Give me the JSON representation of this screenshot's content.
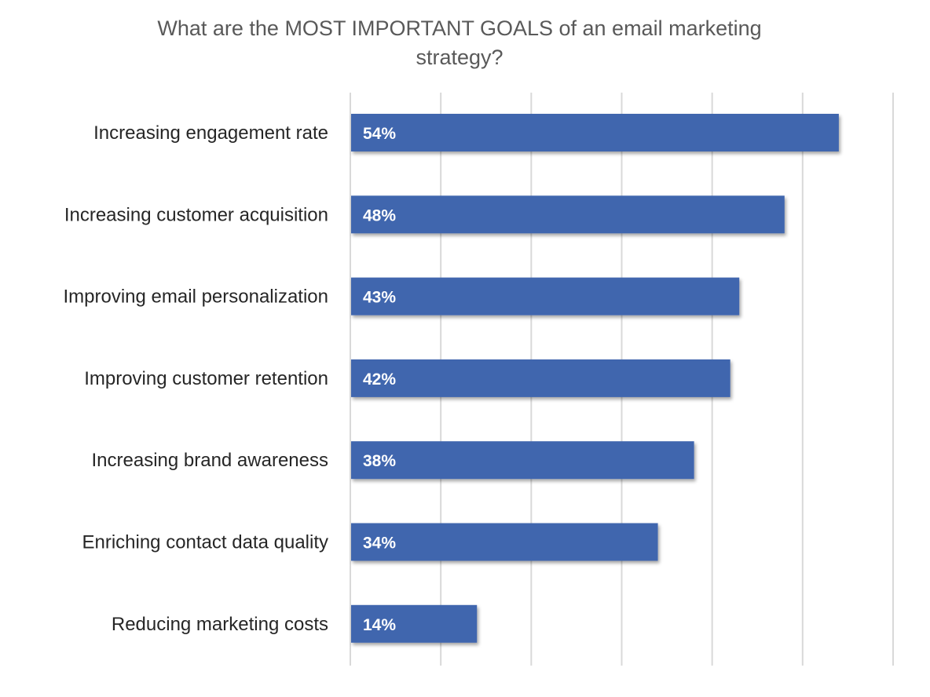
{
  "chart_data": {
    "type": "bar",
    "orientation": "horizontal",
    "title": "What are the MOST IMPORTANT GOALS of an email marketing strategy?",
    "categories": [
      "Increasing engagement rate",
      "Increasing customer acquisition",
      "Improving email personalization",
      "Improving customer retention",
      "Increasing brand awareness",
      "Enriching contact data quality",
      "Reducing marketing costs"
    ],
    "values": [
      54,
      48,
      43,
      42,
      38,
      34,
      14
    ],
    "data_labels": [
      "54%",
      "48%",
      "43%",
      "42%",
      "38%",
      "34%",
      "14%"
    ],
    "xlim": [
      0,
      60
    ],
    "grid_step": 10,
    "grid": true,
    "xlabel": "",
    "ylabel": "",
    "bar_color": "#4066AE",
    "label_color": "#ffffff",
    "text_color": "#262626",
    "grid_color": "#d9d9d9"
  }
}
